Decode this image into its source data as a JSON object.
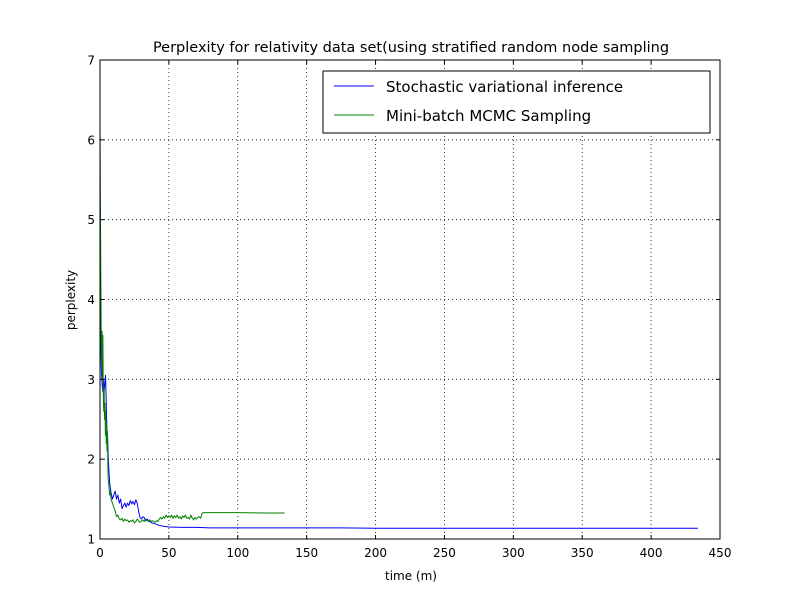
{
  "chart_data": {
    "type": "line",
    "title": "Perplexity for relativity data set(using stratified random node sampling",
    "xlabel": "time (m)",
    "ylabel": "perplexity",
    "xlim": [
      0,
      450
    ],
    "ylim": [
      1,
      7
    ],
    "xticks": [
      0,
      50,
      100,
      150,
      200,
      250,
      300,
      350,
      400,
      450
    ],
    "yticks": [
      1,
      2,
      3,
      4,
      5,
      6,
      7
    ],
    "grid": true,
    "legend_position": "top-right",
    "series": [
      {
        "name": "Stochastic variational inference",
        "color": "#0000ff",
        "points": [
          [
            0.0,
            4.6
          ],
          [
            0.5,
            3.6
          ],
          [
            1.0,
            3.1
          ],
          [
            1.5,
            2.95
          ],
          [
            2.0,
            2.85
          ],
          [
            2.5,
            3.0
          ],
          [
            3.0,
            2.85
          ],
          [
            3.5,
            2.95
          ],
          [
            4.0,
            3.05
          ],
          [
            4.5,
            2.75
          ],
          [
            5.0,
            2.35
          ],
          [
            5.5,
            2.3
          ],
          [
            6.0,
            2.0
          ],
          [
            6.5,
            1.85
          ],
          [
            7.0,
            1.7
          ],
          [
            8.0,
            1.58
          ],
          [
            9.0,
            1.5
          ],
          [
            10.0,
            1.55
          ],
          [
            11.0,
            1.6
          ],
          [
            12.0,
            1.5
          ],
          [
            13.0,
            1.55
          ],
          [
            14.0,
            1.45
          ],
          [
            15.0,
            1.5
          ],
          [
            16.0,
            1.38
          ],
          [
            17.0,
            1.42
          ],
          [
            18.0,
            1.45
          ],
          [
            19.0,
            1.4
          ],
          [
            20.0,
            1.45
          ],
          [
            21.0,
            1.42
          ],
          [
            22.0,
            1.48
          ],
          [
            23.0,
            1.44
          ],
          [
            24.0,
            1.47
          ],
          [
            25.0,
            1.43
          ],
          [
            26.0,
            1.49
          ],
          [
            27.0,
            1.45
          ],
          [
            28.0,
            1.35
          ],
          [
            29.0,
            1.27
          ],
          [
            30.0,
            1.25
          ],
          [
            31.0,
            1.28
          ],
          [
            32.0,
            1.27
          ],
          [
            33.0,
            1.23
          ],
          [
            34.0,
            1.25
          ],
          [
            36.0,
            1.22
          ],
          [
            38.0,
            1.2
          ],
          [
            40.0,
            1.19
          ],
          [
            43.0,
            1.17
          ],
          [
            46.0,
            1.16
          ],
          [
            50.0,
            1.15
          ],
          [
            60.0,
            1.145
          ],
          [
            70.0,
            1.145
          ],
          [
            80.0,
            1.14
          ],
          [
            100.0,
            1.14
          ],
          [
            150.0,
            1.14
          ],
          [
            175.0,
            1.14
          ],
          [
            200.0,
            1.135
          ],
          [
            250.0,
            1.135
          ],
          [
            300.0,
            1.135
          ],
          [
            350.0,
            1.135
          ],
          [
            400.0,
            1.135
          ],
          [
            434.0,
            1.135
          ]
        ]
      },
      {
        "name": "Mini-batch MCMC Sampling",
        "color": "#008000",
        "points": [
          [
            0.0,
            6.25
          ],
          [
            0.3,
            5.2
          ],
          [
            0.6,
            4.3
          ],
          [
            0.9,
            3.5
          ],
          [
            1.2,
            3.2
          ],
          [
            1.5,
            3.6
          ],
          [
            1.8,
            3.0
          ],
          [
            2.1,
            3.55
          ],
          [
            2.4,
            2.8
          ],
          [
            2.7,
            2.6
          ],
          [
            3.0,
            2.9
          ],
          [
            3.3,
            2.5
          ],
          [
            3.6,
            2.7
          ],
          [
            3.9,
            2.3
          ],
          [
            4.2,
            2.6
          ],
          [
            4.5,
            2.2
          ],
          [
            4.8,
            2.45
          ],
          [
            5.1,
            2.1
          ],
          [
            5.4,
            2.35
          ],
          [
            5.7,
            1.9
          ],
          [
            6.0,
            1.75
          ],
          [
            6.5,
            1.65
          ],
          [
            7.0,
            1.55
          ],
          [
            7.5,
            1.6
          ],
          [
            8.0,
            1.5
          ],
          [
            9.0,
            1.45
          ],
          [
            10.0,
            1.4
          ],
          [
            11.0,
            1.35
          ],
          [
            12.0,
            1.28
          ],
          [
            13.0,
            1.3
          ],
          [
            14.0,
            1.25
          ],
          [
            15.0,
            1.24
          ],
          [
            16.0,
            1.26
          ],
          [
            17.0,
            1.22
          ],
          [
            18.0,
            1.25
          ],
          [
            19.0,
            1.23
          ],
          [
            20.0,
            1.24
          ],
          [
            21.0,
            1.21
          ],
          [
            22.0,
            1.23
          ],
          [
            23.0,
            1.22
          ],
          [
            24.0,
            1.24
          ],
          [
            25.0,
            1.2
          ],
          [
            26.0,
            1.22
          ],
          [
            27.0,
            1.25
          ],
          [
            28.0,
            1.23
          ],
          [
            29.0,
            1.21
          ],
          [
            30.0,
            1.22
          ],
          [
            31.0,
            1.24
          ],
          [
            32.0,
            1.22
          ],
          [
            33.0,
            1.25
          ],
          [
            34.0,
            1.23
          ],
          [
            35.0,
            1.22
          ],
          [
            36.0,
            1.24
          ],
          [
            37.0,
            1.22
          ],
          [
            38.0,
            1.23
          ],
          [
            39.0,
            1.22
          ],
          [
            40.0,
            1.21
          ],
          [
            41.0,
            1.23
          ],
          [
            42.0,
            1.22
          ],
          [
            43.0,
            1.25
          ],
          [
            44.0,
            1.27
          ],
          [
            45.0,
            1.25
          ],
          [
            46.0,
            1.28
          ],
          [
            47.0,
            1.26
          ],
          [
            48.0,
            1.3
          ],
          [
            49.0,
            1.27
          ],
          [
            50.0,
            1.29
          ],
          [
            51.0,
            1.27
          ],
          [
            52.0,
            1.3
          ],
          [
            53.0,
            1.26
          ],
          [
            54.0,
            1.29
          ],
          [
            55.0,
            1.27
          ],
          [
            56.0,
            1.3
          ],
          [
            57.0,
            1.26
          ],
          [
            58.0,
            1.28
          ],
          [
            59.0,
            1.25
          ],
          [
            60.0,
            1.29
          ],
          [
            61.0,
            1.27
          ],
          [
            62.0,
            1.3
          ],
          [
            63.0,
            1.26
          ],
          [
            64.0,
            1.27
          ],
          [
            65.0,
            1.25
          ],
          [
            66.0,
            1.3
          ],
          [
            67.0,
            1.26
          ],
          [
            68.0,
            1.24
          ],
          [
            69.0,
            1.27
          ],
          [
            70.0,
            1.25
          ],
          [
            71.0,
            1.27
          ],
          [
            72.0,
            1.28
          ],
          [
            73.0,
            1.26
          ],
          [
            74.0,
            1.32
          ],
          [
            75.0,
            1.33
          ],
          [
            80.0,
            1.33
          ],
          [
            100.0,
            1.33
          ],
          [
            120.0,
            1.325
          ],
          [
            134.0,
            1.325
          ]
        ]
      }
    ]
  }
}
